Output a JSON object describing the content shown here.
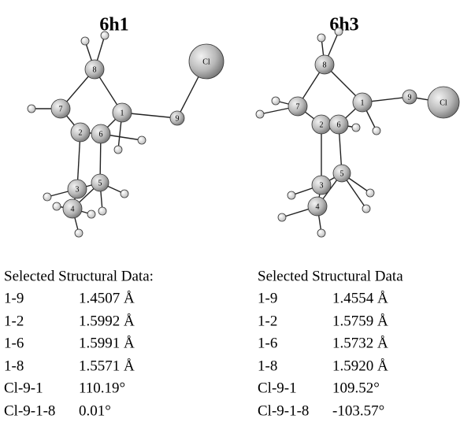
{
  "panels": [
    {
      "title": "6h1",
      "atoms": [
        "Cl",
        "8",
        "7",
        "1",
        "9",
        "2",
        "6",
        "3",
        "5",
        "4"
      ],
      "table": {
        "heading": "Selected Structural Data:",
        "rows": [
          [
            "1-9",
            "1.4507 Å"
          ],
          [
            "1-2",
            "1.5992 Å"
          ],
          [
            "1-6",
            "1.5991 Å"
          ],
          [
            "1-8",
            "1.5571 Å"
          ],
          [
            "Cl-9-1",
            "110.19°"
          ],
          [
            "Cl-9-1-8",
            "0.01°"
          ]
        ]
      }
    },
    {
      "title": "6h3",
      "atoms": [
        "8",
        "7",
        "1",
        "9",
        "Cl",
        "2",
        "6",
        "3",
        "5",
        "4"
      ],
      "table": {
        "heading": "Selected Structural Data",
        "rows": [
          [
            "1-9",
            "1.4554 Å"
          ],
          [
            "1-2",
            "1.5759 Å"
          ],
          [
            "1-6",
            "1.5732 Å"
          ],
          [
            "1-8",
            "1.5920 Å"
          ],
          [
            "Cl-9-1",
            "109.52°"
          ],
          [
            "Cl-9-1-8",
            "-103.57°"
          ]
        ]
      }
    }
  ]
}
